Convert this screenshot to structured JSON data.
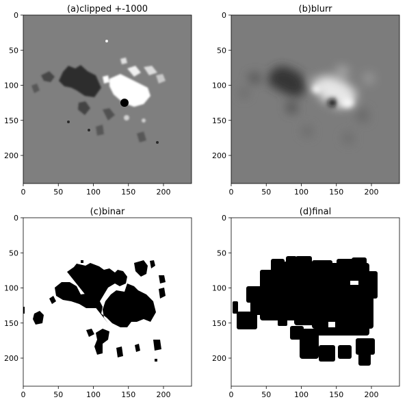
{
  "figure": {
    "panels": [
      {
        "id": "a",
        "title": "(a)clipped +-1000",
        "style": "magnetogram"
      },
      {
        "id": "b",
        "title": "(b)blurr",
        "style": "blurred"
      },
      {
        "id": "c",
        "title": "(c)binar",
        "style": "binary-mask"
      },
      {
        "id": "d",
        "title": "(d)final",
        "style": "dilated-mask"
      }
    ]
  },
  "chart_data": [
    {
      "type": "heatmap",
      "title": "(a)clipped +-1000",
      "xlim": [
        0,
        240
      ],
      "ylim": [
        240,
        0
      ],
      "xticks": [
        0,
        50,
        100,
        150,
        200
      ],
      "yticks": [
        0,
        50,
        100,
        150,
        200
      ],
      "colormap": "gray",
      "features": {
        "dark_region_center": [
          95,
          120
        ],
        "bright_region_center": [
          165,
          130
        ],
        "sunspot_center": [
          145,
          125
        ]
      }
    },
    {
      "type": "heatmap",
      "title": "(b)blurr",
      "xlim": [
        0,
        240
      ],
      "ylim": [
        240,
        0
      ],
      "xticks": [
        0,
        50,
        100,
        150,
        200
      ],
      "yticks": [
        0,
        50,
        100,
        150,
        200
      ],
      "colormap": "gray"
    },
    {
      "type": "heatmap",
      "title": "(c)binar",
      "xlim": [
        0,
        240
      ],
      "ylim": [
        240,
        0
      ],
      "xticks": [
        0,
        50,
        100,
        150,
        200
      ],
      "yticks": [
        0,
        50,
        100,
        150,
        200
      ],
      "colormap": "binary"
    },
    {
      "type": "heatmap",
      "title": "(d)final",
      "xlim": [
        0,
        240
      ],
      "ylim": [
        240,
        0
      ],
      "xticks": [
        0,
        50,
        100,
        150,
        200
      ],
      "yticks": [
        0,
        50,
        100,
        150,
        200
      ],
      "colormap": "binary"
    }
  ]
}
